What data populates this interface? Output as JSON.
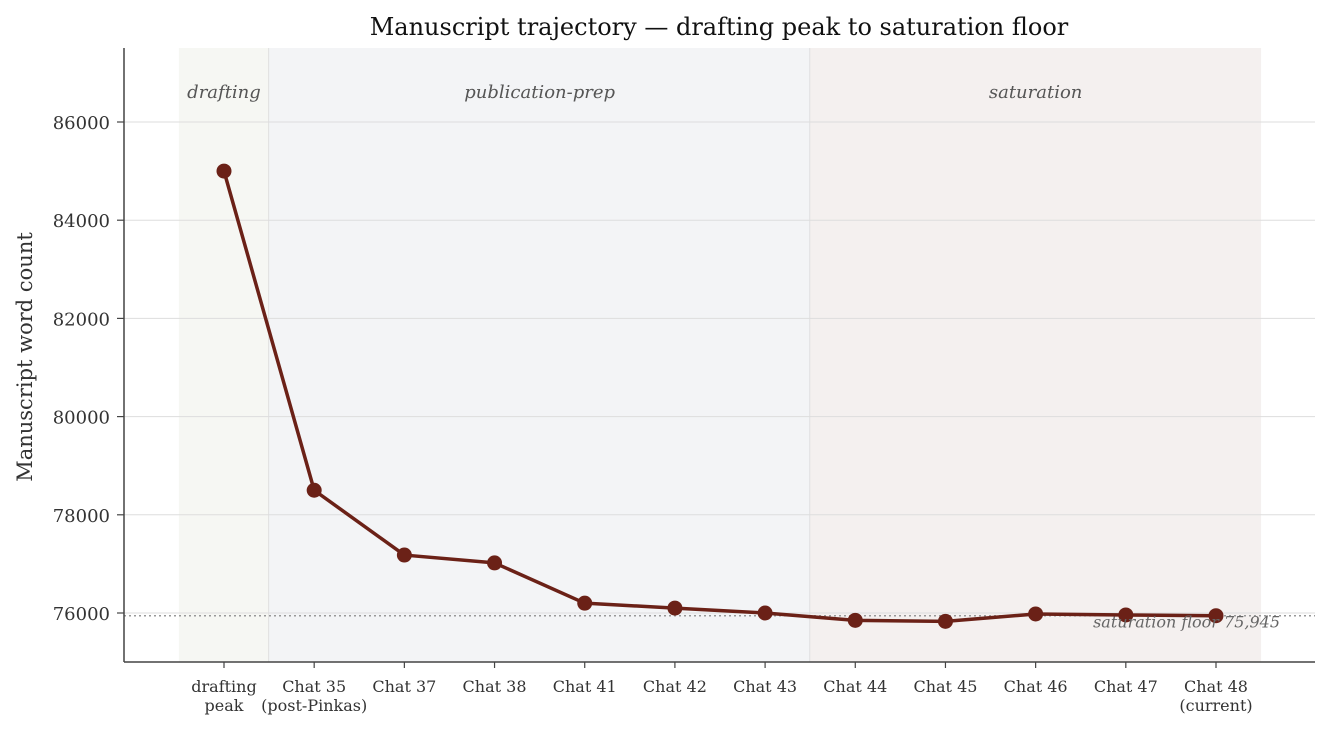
{
  "chart_data": {
    "type": "line",
    "title": "Manuscript trajectory — drafting peak to saturation floor",
    "xlabel": "",
    "ylabel": "Manuscript word count",
    "categories": [
      "drafting\npeak",
      "Chat 35\n(post-Pinkas)",
      "Chat 37",
      "Chat 38",
      "Chat 41",
      "Chat 42",
      "Chat 43",
      "Chat 44",
      "Chat 45",
      "Chat 46",
      "Chat 47",
      "Chat 48\n(current)"
    ],
    "values": [
      85000,
      78500,
      77180,
      77020,
      76200,
      76100,
      76000,
      75850,
      75830,
      75980,
      75960,
      75945
    ],
    "ylim": [
      75000,
      87500
    ],
    "yticks": [
      76000,
      78000,
      80000,
      82000,
      84000,
      86000
    ],
    "grid": "horizontal",
    "line_color": "#6b2117",
    "phases": [
      {
        "label": "drafting",
        "start": 0,
        "end": 0,
        "color": "#f6f7f3"
      },
      {
        "label": "publication-prep",
        "start": 1,
        "end": 6,
        "color": "#f3f4f6"
      },
      {
        "label": "saturation",
        "start": 7,
        "end": 11,
        "color": "#f4f0ef"
      }
    ],
    "reference_line": {
      "value": 75945,
      "label": "saturation floor 75,945"
    }
  }
}
